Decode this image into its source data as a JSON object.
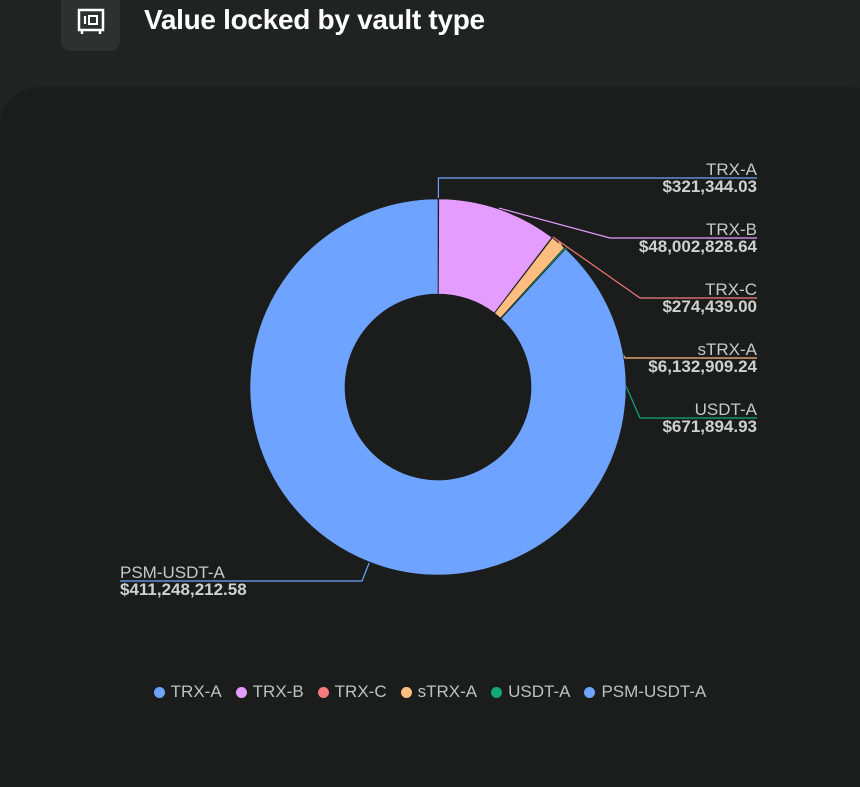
{
  "header": {
    "title": "Value locked by vault type",
    "icon": "vault-safe-icon"
  },
  "chart_data": {
    "type": "pie",
    "donut": true,
    "title": "",
    "legend_position": "bottom",
    "slices": [
      {
        "name": "TRX-A",
        "value": 321344.03,
        "label": "$321,344.03",
        "color": "#6ea4ff"
      },
      {
        "name": "TRX-B",
        "value": 48002828.64,
        "label": "$48,002,828.64",
        "color": "#e59cff"
      },
      {
        "name": "TRX-C",
        "value": 274439.0,
        "label": "$274,439.00",
        "color": "#f47b7b"
      },
      {
        "name": "sTRX-A",
        "value": 6132909.24,
        "label": "$6,132,909.24",
        "color": "#ffbd7f"
      },
      {
        "name": "USDT-A",
        "value": 671894.93,
        "label": "$671,894.93",
        "color": "#12a878"
      },
      {
        "name": "PSM-USDT-A",
        "value": 411248212.58,
        "label": "$411,248,212.58",
        "color": "#6ea4ff"
      }
    ]
  }
}
